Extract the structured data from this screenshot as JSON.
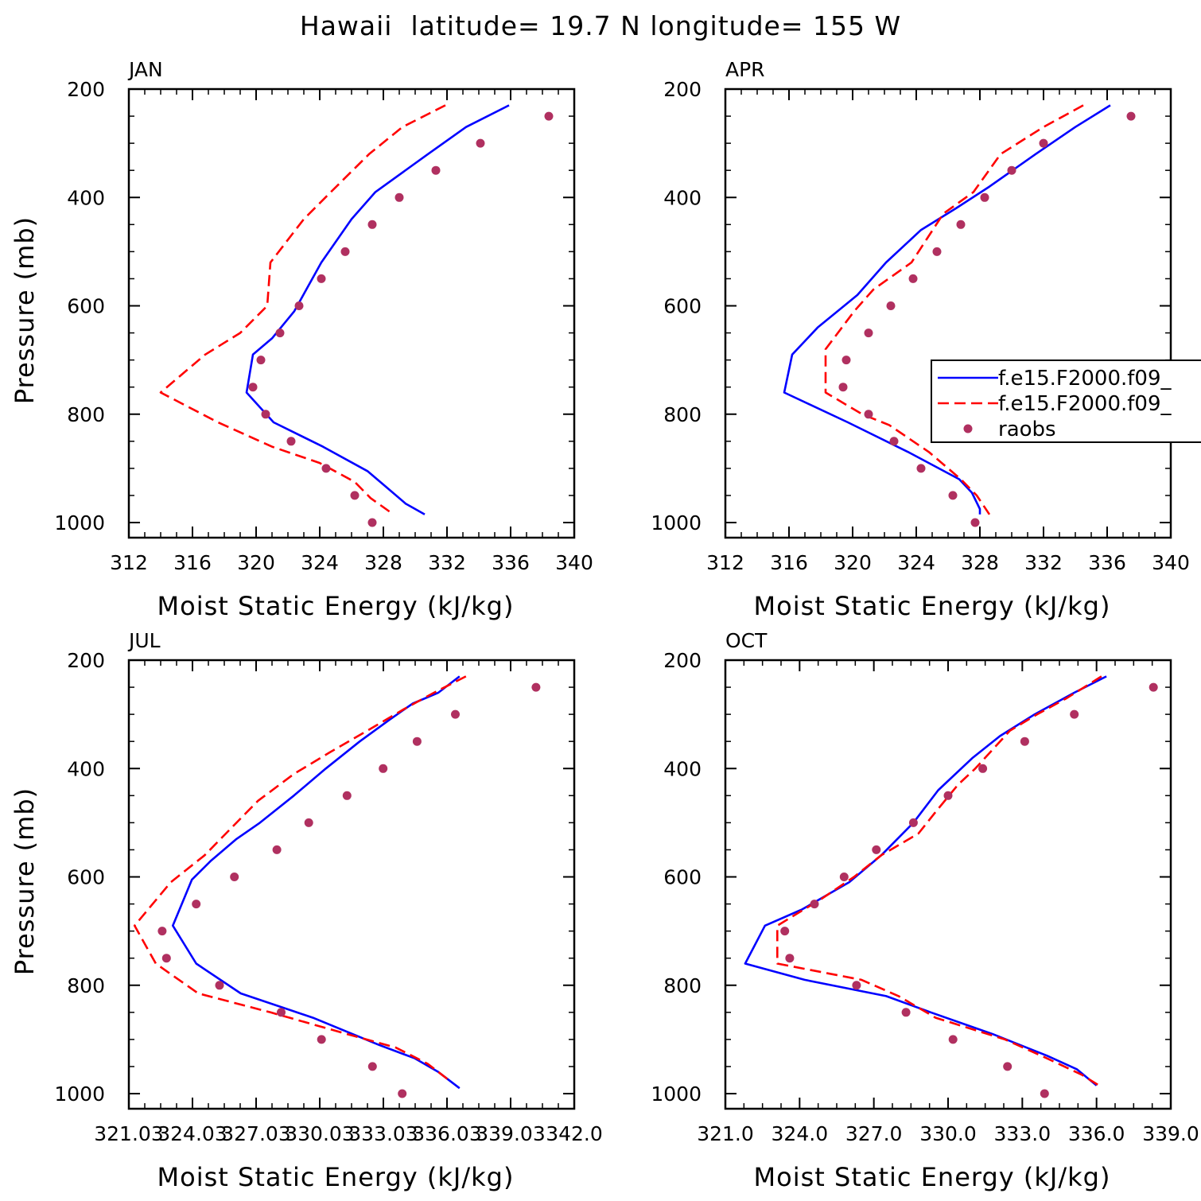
{
  "figure": {
    "title": "Hawaii  latitude= 19.7 N longitude= 155 W"
  },
  "colors": {
    "model_solid": "#0000ff",
    "model_dashed": "#ff0000",
    "raobs": "#b03060"
  },
  "chart_data": [
    {
      "type": "line",
      "panel": "JAN",
      "xlabel": "Moist Static Energy (kJ/kg)",
      "ylabel": "Pressure (mb)",
      "xlim": [
        312,
        340
      ],
      "ylim": [
        1000,
        200
      ],
      "x_ticks": [
        "312",
        "316",
        "320",
        "324",
        "328",
        "332",
        "336",
        "340"
      ],
      "y_ticks": [
        "200",
        "400",
        "600",
        "800",
        "1000"
      ],
      "legend": false,
      "series": [
        {
          "style": "solid",
          "color": "#0000ff",
          "points": [
            [
              335.9,
              230
            ],
            [
              333.2,
              270
            ],
            [
              330.8,
              320
            ],
            [
              327.5,
              390
            ],
            [
              326.0,
              440
            ],
            [
              324.1,
              520
            ],
            [
              322.4,
              610
            ],
            [
              321.0,
              660
            ],
            [
              319.8,
              690
            ],
            [
              319.4,
              760
            ],
            [
              321.1,
              815
            ],
            [
              324.2,
              860
            ],
            [
              327.0,
              905
            ],
            [
              328.0,
              930
            ],
            [
              329.4,
              965
            ],
            [
              330.6,
              985
            ]
          ]
        },
        {
          "style": "dashed",
          "color": "#ff0000",
          "points": [
            [
              331.9,
              230
            ],
            [
              329.2,
              270
            ],
            [
              327.1,
              320
            ],
            [
              324.7,
              390
            ],
            [
              323.0,
              440
            ],
            [
              320.9,
              520
            ],
            [
              320.7,
              600
            ],
            [
              319.0,
              650
            ],
            [
              316.8,
              690
            ],
            [
              314.0,
              760
            ],
            [
              317.6,
              815
            ],
            [
              321.0,
              860
            ],
            [
              324.0,
              890
            ],
            [
              326.2,
              925
            ],
            [
              327.2,
              955
            ],
            [
              328.4,
              980
            ]
          ]
        },
        {
          "style": "dots",
          "color": "#b03060",
          "points": [
            [
              338.4,
              250
            ],
            [
              334.1,
              300
            ],
            [
              331.3,
              350
            ],
            [
              329.0,
              400
            ],
            [
              327.3,
              450
            ],
            [
              325.6,
              500
            ],
            [
              324.1,
              550
            ],
            [
              322.7,
              600
            ],
            [
              321.5,
              650
            ],
            [
              320.3,
              700
            ],
            [
              319.8,
              750
            ],
            [
              320.6,
              800
            ],
            [
              322.2,
              850
            ],
            [
              324.4,
              900
            ],
            [
              326.2,
              950
            ],
            [
              327.3,
              1000
            ]
          ]
        }
      ]
    },
    {
      "type": "line",
      "panel": "APR",
      "xlabel": "Moist Static Energy (kJ/kg)",
      "ylabel": "",
      "xlim": [
        312,
        340
      ],
      "ylim": [
        1000,
        200
      ],
      "x_ticks": [
        "312",
        "316",
        "320",
        "324",
        "328",
        "332",
        "336",
        "340"
      ],
      "y_ticks": [
        "200",
        "400",
        "600",
        "800",
        "1000"
      ],
      "legend": true,
      "legend_placement": "right-middle",
      "series": [
        {
          "name": "f.e15.F2000.f09_",
          "style": "solid",
          "color": "#0000ff",
          "points": [
            [
              336.2,
              230
            ],
            [
              334.0,
              270
            ],
            [
              331.5,
              320
            ],
            [
              328.6,
              380
            ],
            [
              326.5,
              420
            ],
            [
              324.3,
              460
            ],
            [
              322.1,
              520
            ],
            [
              320.3,
              580
            ],
            [
              317.8,
              640
            ],
            [
              316.2,
              690
            ],
            [
              315.7,
              760
            ],
            [
              319.7,
              815
            ],
            [
              323.5,
              870
            ],
            [
              326.7,
              920
            ],
            [
              327.5,
              945
            ],
            [
              328.0,
              975
            ],
            [
              328.0,
              985
            ]
          ]
        },
        {
          "name": "f.e15.F2000.f09_",
          "style": "dashed",
          "color": "#ff0000",
          "points": [
            [
              334.5,
              230
            ],
            [
              332.0,
              270
            ],
            [
              329.3,
              320
            ],
            [
              327.6,
              390
            ],
            [
              325.7,
              430
            ],
            [
              323.7,
              520
            ],
            [
              321.3,
              570
            ],
            [
              320.1,
              610
            ],
            [
              318.3,
              680
            ],
            [
              318.3,
              760
            ],
            [
              320.6,
              800
            ],
            [
              322.3,
              820
            ],
            [
              324.8,
              870
            ],
            [
              326.8,
              920
            ],
            [
              327.8,
              950
            ],
            [
              328.6,
              985
            ]
          ]
        },
        {
          "name": "raobs",
          "style": "dots",
          "color": "#b03060",
          "points": [
            [
              337.5,
              250
            ],
            [
              332.0,
              300
            ],
            [
              330.0,
              350
            ],
            [
              328.3,
              400
            ],
            [
              326.8,
              450
            ],
            [
              325.3,
              500
            ],
            [
              323.8,
              550
            ],
            [
              322.4,
              600
            ],
            [
              321.0,
              650
            ],
            [
              319.6,
              700
            ],
            [
              319.4,
              750
            ],
            [
              321.0,
              800
            ],
            [
              322.6,
              850
            ],
            [
              324.3,
              900
            ],
            [
              326.3,
              950
            ],
            [
              327.7,
              1000
            ]
          ]
        }
      ]
    },
    {
      "type": "line",
      "panel": "JUL",
      "xlabel": "Moist Static Energy (kJ/kg)",
      "ylabel": "Pressure (mb)",
      "xlim": [
        321.03,
        342.0
      ],
      "ylim": [
        1000,
        200
      ],
      "x_ticks": [
        "321.03",
        "324.03",
        "327.03",
        "330.03",
        "333.03",
        "336.03",
        "339.03",
        "342.0"
      ],
      "y_ticks": [
        "200",
        "400",
        "600",
        "800",
        "1000"
      ],
      "legend": false,
      "series": [
        {
          "style": "solid",
          "color": "#0000ff",
          "points": [
            [
              336.6,
              230
            ],
            [
              335.6,
              260
            ],
            [
              334.4,
              280
            ],
            [
              333.3,
              310
            ],
            [
              331.9,
              350
            ],
            [
              330.3,
              400
            ],
            [
              328.8,
              450
            ],
            [
              327.2,
              500
            ],
            [
              326.1,
              530
            ],
            [
              324.9,
              570
            ],
            [
              324.0,
              605
            ],
            [
              323.1,
              690
            ],
            [
              324.2,
              760
            ],
            [
              326.3,
              815
            ],
            [
              329.7,
              860
            ],
            [
              332.8,
              910
            ],
            [
              334.5,
              935
            ],
            [
              335.6,
              960
            ],
            [
              336.6,
              990
            ]
          ]
        },
        {
          "style": "dashed",
          "color": "#ff0000",
          "points": [
            [
              336.9,
              230
            ],
            [
              335.4,
              260
            ],
            [
              334.0,
              290
            ],
            [
              332.7,
              320
            ],
            [
              330.5,
              370
            ],
            [
              328.8,
              410
            ],
            [
              327.1,
              460
            ],
            [
              325.6,
              520
            ],
            [
              324.6,
              560
            ],
            [
              323.0,
              610
            ],
            [
              321.3,
              690
            ],
            [
              322.3,
              760
            ],
            [
              324.3,
              815
            ],
            [
              327.7,
              850
            ],
            [
              331.3,
              890
            ],
            [
              333.6,
              915
            ],
            [
              335.1,
              945
            ],
            [
              336.1,
              975
            ]
          ]
        },
        {
          "style": "dots",
          "color": "#b03060",
          "points": [
            [
              340.2,
              250
            ],
            [
              336.4,
              300
            ],
            [
              334.6,
              350
            ],
            [
              333.0,
              400
            ],
            [
              331.3,
              450
            ],
            [
              329.5,
              500
            ],
            [
              328.0,
              550
            ],
            [
              326.0,
              600
            ],
            [
              324.2,
              650
            ],
            [
              322.6,
              700
            ],
            [
              322.8,
              750
            ],
            [
              325.3,
              800
            ],
            [
              328.2,
              850
            ],
            [
              330.1,
              900
            ],
            [
              332.5,
              950
            ],
            [
              333.9,
              1000
            ]
          ]
        }
      ]
    },
    {
      "type": "line",
      "panel": "OCT",
      "xlabel": "Moist Static Energy (kJ/kg)",
      "ylabel": "",
      "xlim": [
        321.0,
        339.0
      ],
      "ylim": [
        1000,
        200
      ],
      "x_ticks": [
        "321.0",
        "324.0",
        "327.0",
        "330.0",
        "333.0",
        "336.0",
        "339.0"
      ],
      "y_ticks": [
        "200",
        "400",
        "600",
        "800",
        "1000"
      ],
      "legend": false,
      "series": [
        {
          "style": "solid",
          "color": "#0000ff",
          "points": [
            [
              336.4,
              230
            ],
            [
              335.1,
              260
            ],
            [
              333.5,
              300
            ],
            [
              332.1,
              340
            ],
            [
              331.0,
              380
            ],
            [
              329.6,
              440
            ],
            [
              328.6,
              500
            ],
            [
              327.3,
              560
            ],
            [
              326.0,
              610
            ],
            [
              324.1,
              660
            ],
            [
              322.6,
              690
            ],
            [
              321.8,
              760
            ],
            [
              324.2,
              790
            ],
            [
              327.5,
              820
            ],
            [
              329.3,
              850
            ],
            [
              331.8,
              890
            ],
            [
              334.0,
              930
            ],
            [
              335.2,
              955
            ],
            [
              336.0,
              985
            ]
          ]
        },
        {
          "style": "dashed",
          "color": "#ff0000",
          "points": [
            [
              336.2,
              230
            ],
            [
              334.8,
              270
            ],
            [
              333.6,
              300
            ],
            [
              332.5,
              330
            ],
            [
              331.1,
              400
            ],
            [
              330.4,
              430
            ],
            [
              329.5,
              480
            ],
            [
              328.8,
              520
            ],
            [
              327.3,
              560
            ],
            [
              326.2,
              600
            ],
            [
              324.9,
              640
            ],
            [
              323.1,
              690
            ],
            [
              323.1,
              760
            ],
            [
              326.5,
              790
            ],
            [
              328.0,
              820
            ],
            [
              329.5,
              860
            ],
            [
              332.3,
              900
            ],
            [
              334.0,
              935
            ],
            [
              335.4,
              965
            ],
            [
              336.1,
              985
            ]
          ]
        },
        {
          "style": "dots",
          "color": "#b03060",
          "points": [
            [
              338.3,
              250
            ],
            [
              335.1,
              300
            ],
            [
              333.1,
              350
            ],
            [
              331.4,
              400
            ],
            [
              330.0,
              450
            ],
            [
              328.6,
              500
            ],
            [
              327.1,
              550
            ],
            [
              325.8,
              600
            ],
            [
              324.6,
              650
            ],
            [
              323.4,
              700
            ],
            [
              323.6,
              750
            ],
            [
              326.3,
              800
            ],
            [
              328.3,
              850
            ],
            [
              330.2,
              900
            ],
            [
              332.4,
              950
            ],
            [
              333.9,
              1000
            ]
          ]
        }
      ]
    }
  ]
}
